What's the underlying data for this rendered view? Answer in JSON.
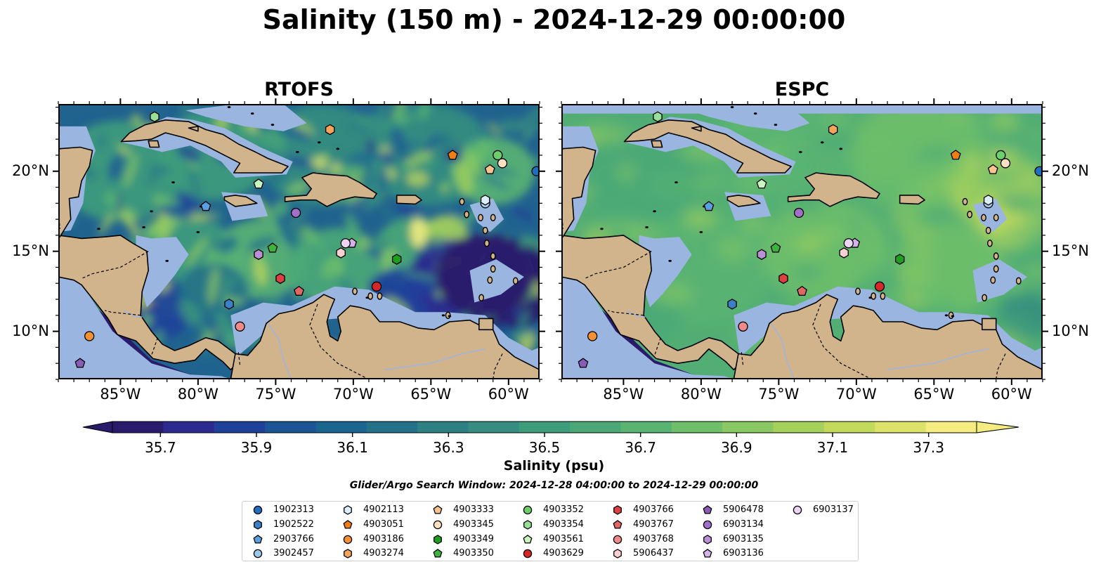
{
  "title": "Salinity (150 m) - 2024-12-29 00:00:00",
  "panels": [
    {
      "title": "RTOFS",
      "style": "eddy"
    },
    {
      "title": "ESPC",
      "style": "smooth"
    }
  ],
  "map_extent": {
    "lon_min": -89,
    "lon_max": -58,
    "lat_min": 7,
    "lat_max": 24.2
  },
  "lon_ticks": [
    {
      "value": -85,
      "label": "85°W"
    },
    {
      "value": -80,
      "label": "80°W"
    },
    {
      "value": -75,
      "label": "75°W"
    },
    {
      "value": -70,
      "label": "70°W"
    },
    {
      "value": -65,
      "label": "65°W"
    },
    {
      "value": -60,
      "label": "60°W"
    }
  ],
  "lat_ticks": [
    {
      "value": 20,
      "label": "20°N"
    },
    {
      "value": 15,
      "label": "15°N"
    },
    {
      "value": 10,
      "label": "10°N"
    }
  ],
  "colorbar": {
    "label": "Salinity (psu)",
    "min": 35.6,
    "max": 37.4,
    "step": 0.1,
    "ticks": [
      "35.7",
      "35.9",
      "36.1",
      "36.3",
      "36.5",
      "36.7",
      "36.9",
      "37.1",
      "37.3"
    ],
    "colors": [
      "#2a1a6b",
      "#2c2a8e",
      "#20419a",
      "#1c5595",
      "#1a6490",
      "#237288",
      "#2d8083",
      "#358e80",
      "#3f9c7b",
      "#4aa877",
      "#59b472",
      "#6fbf6a",
      "#8ac863",
      "#a6d05c",
      "#c2d95b",
      "#dde36a",
      "#f4ec80"
    ],
    "extend": "both"
  },
  "colors": {
    "land": "#d2b48c",
    "shallow": "#9ab5e0",
    "rivers": "#a0b4dc",
    "coast": "#000000"
  },
  "search_window": "Glider/Argo Search Window: 2024-12-28 04:00:00 to 2024-12-29 00:00:00",
  "floats": [
    {
      "id": "1902313",
      "lon": -58.2,
      "lat": 20.0,
      "color": "#1f6fbf",
      "marker": "circle"
    },
    {
      "id": "1902522",
      "lon": -78.0,
      "lat": 11.7,
      "color": "#3a7fc8",
      "marker": "hexagon"
    },
    {
      "id": "2903766",
      "lon": -79.5,
      "lat": 17.8,
      "color": "#5aa0e0",
      "marker": "pentagon"
    },
    {
      "id": "3902457",
      "lon": -61.5,
      "lat": 18.0,
      "color": "#9ecae9",
      "marker": "circle"
    },
    {
      "id": "4902113",
      "lon": -61.5,
      "lat": 18.2,
      "color": "#dceefa",
      "marker": "hexagon"
    },
    {
      "id": "4903051",
      "lon": -63.6,
      "lat": 21.0,
      "color": "#f07f13",
      "marker": "pentagon"
    },
    {
      "id": "4903186",
      "lon": -87.0,
      "lat": 9.7,
      "color": "#f39133",
      "marker": "circle"
    },
    {
      "id": "4903274",
      "lon": -71.5,
      "lat": 22.6,
      "color": "#f5a45a",
      "marker": "hexagon"
    },
    {
      "id": "4903333",
      "lon": -61.2,
      "lat": 20.1,
      "color": "#fbc48f",
      "marker": "pentagon"
    },
    {
      "id": "4903345",
      "lon": -60.4,
      "lat": 20.5,
      "color": "#fde0c0",
      "marker": "circle"
    },
    {
      "id": "4903349",
      "lon": -67.2,
      "lat": 14.5,
      "color": "#1e9e1e",
      "marker": "hexagon"
    },
    {
      "id": "4903350",
      "lon": -75.2,
      "lat": 15.2,
      "color": "#3db33d",
      "marker": "pentagon"
    },
    {
      "id": "4903352",
      "lon": -60.7,
      "lat": 21.0,
      "color": "#6ccf6c",
      "marker": "circle"
    },
    {
      "id": "4903354",
      "lon": -82.8,
      "lat": 23.4,
      "color": "#98e098",
      "marker": "hexagon"
    },
    {
      "id": "4903561",
      "lon": -76.1,
      "lat": 19.2,
      "color": "#c8f5c0",
      "marker": "pentagon"
    },
    {
      "id": "4903629",
      "lon": -68.5,
      "lat": 12.8,
      "color": "#d62728",
      "marker": "circle"
    },
    {
      "id": "4903766",
      "lon": -74.7,
      "lat": 13.3,
      "color": "#dc4040",
      "marker": "hexagon"
    },
    {
      "id": "4903767",
      "lon": -73.5,
      "lat": 12.5,
      "color": "#e26666",
      "marker": "pentagon"
    },
    {
      "id": "4903768",
      "lon": -77.3,
      "lat": 10.3,
      "color": "#f08a8a",
      "marker": "circle"
    },
    {
      "id": "5906437",
      "lon": -70.8,
      "lat": 14.9,
      "color": "#fbd0d0",
      "marker": "hexagon"
    },
    {
      "id": "5906478",
      "lon": -87.6,
      "lat": 8.0,
      "color": "#8a5cb8",
      "marker": "pentagon"
    },
    {
      "id": "6903134",
      "lon": -73.7,
      "lat": 17.4,
      "color": "#a070c8",
      "marker": "circle"
    },
    {
      "id": "6903135",
      "lon": -76.1,
      "lat": 14.8,
      "color": "#bb8fd6",
      "marker": "hexagon"
    },
    {
      "id": "6903136",
      "lon": -70.1,
      "lat": 15.5,
      "color": "#d5b2e8",
      "marker": "pentagon"
    },
    {
      "id": "6903137",
      "lon": -70.5,
      "lat": 15.5,
      "color": "#ecd5f5",
      "marker": "circle"
    }
  ]
}
